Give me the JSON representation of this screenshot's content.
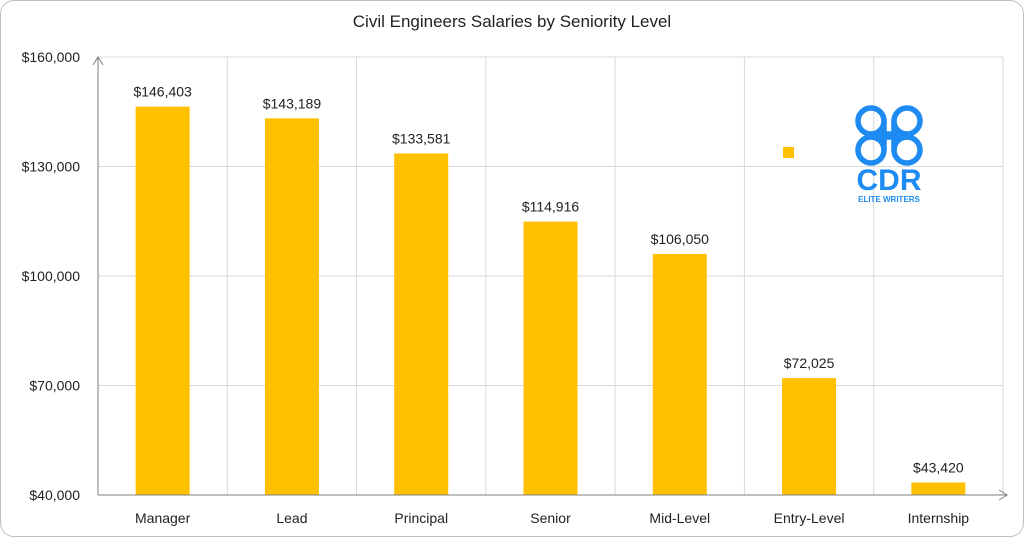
{
  "chart_data": {
    "type": "bar",
    "title": "Civil Engineers Salaries by Seniority Level",
    "categories": [
      "Manager",
      "Lead",
      "Principal",
      "Senior",
      "Mid-Level",
      "Entry-Level",
      "Internship"
    ],
    "values": [
      146403,
      143189,
      133581,
      114916,
      106050,
      72025,
      43420
    ],
    "value_labels": [
      "$146,403",
      "$143,189",
      "$133,581",
      "$114,916",
      "$106,050",
      "$72,025",
      "$43,420"
    ],
    "ylim": [
      40000,
      160000
    ],
    "yticks": [
      40000,
      70000,
      100000,
      130000,
      160000
    ],
    "ytick_labels": [
      "$40,000",
      "$70,000",
      "$100,000",
      "$130,000",
      "$160,000"
    ],
    "xlabel": "",
    "ylabel": "",
    "grid": true,
    "bar_color": "#FFC000",
    "legend": {
      "placement": "top-right",
      "marker_color": "#FFC000"
    }
  },
  "logo": {
    "text": "CDR",
    "subtext": "ELITE WRITERS",
    "color": "#1D8BF1"
  }
}
